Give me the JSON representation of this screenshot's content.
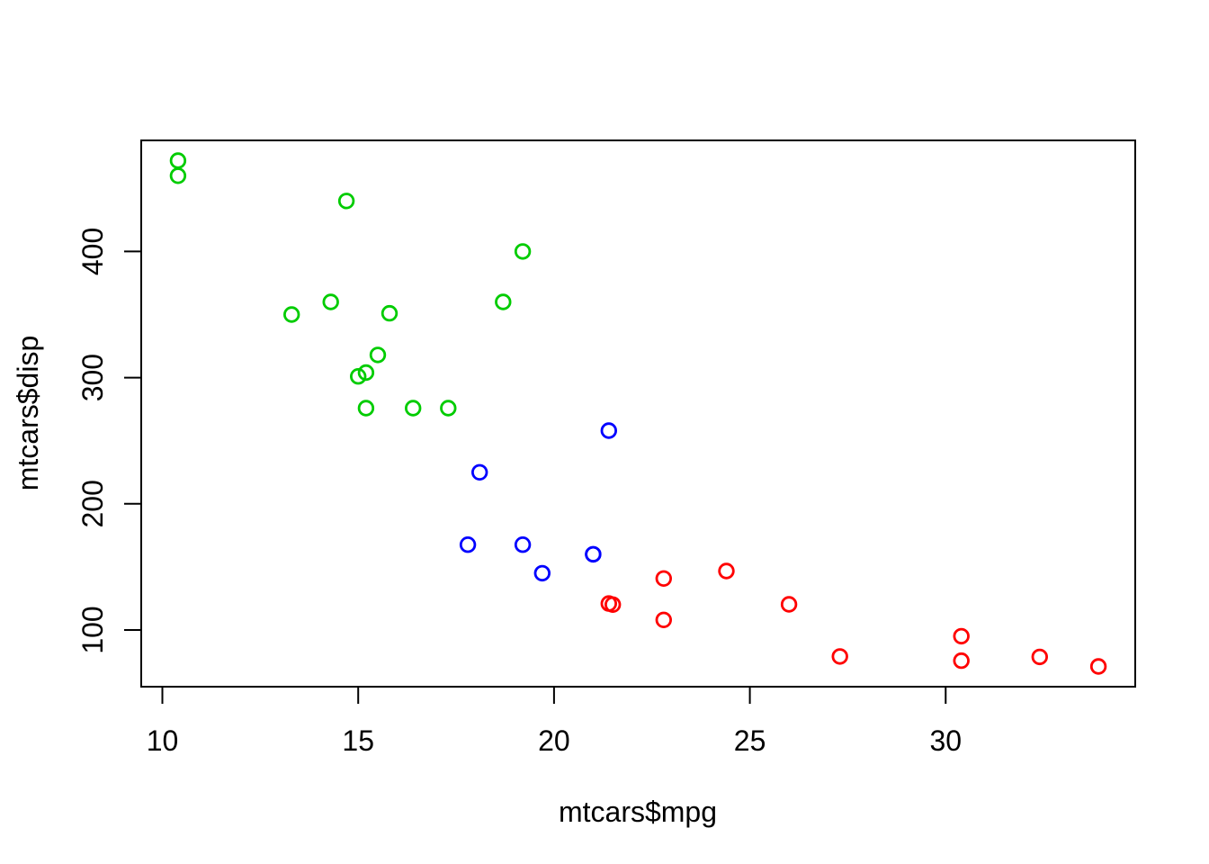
{
  "figure": {
    "background": "#ffffff",
    "axis_color": "#000000"
  },
  "chart_data": {
    "type": "scatter",
    "title": "",
    "xlabel": "mtcars$mpg",
    "ylabel": "mtcars$disp",
    "xlim": [
      9.46,
      34.84
    ],
    "ylim": [
      55.06,
      488.04
    ],
    "x_ticks": [
      10,
      15,
      20,
      25,
      30
    ],
    "y_ticks": [
      100,
      200,
      300,
      400
    ],
    "grid": false,
    "legend": "none",
    "marker": "open-circle",
    "series": [
      {
        "name": "red",
        "color": "#ff0000",
        "points": [
          [
            22.8,
            108.0
          ],
          [
            24.4,
            146.7
          ],
          [
            22.8,
            140.8
          ],
          [
            32.4,
            78.7
          ],
          [
            30.4,
            75.7
          ],
          [
            33.9,
            71.1
          ],
          [
            21.5,
            120.1
          ],
          [
            27.3,
            79.0
          ],
          [
            26.0,
            120.3
          ],
          [
            30.4,
            95.1
          ],
          [
            21.4,
            121.0
          ]
        ]
      },
      {
        "name": "blue",
        "color": "#0000ff",
        "points": [
          [
            21.0,
            160.0
          ],
          [
            21.0,
            160.0
          ],
          [
            21.4,
            258.0
          ],
          [
            18.1,
            225.0
          ],
          [
            19.2,
            167.6
          ],
          [
            17.8,
            167.6
          ],
          [
            19.7,
            145.0
          ]
        ]
      },
      {
        "name": "green",
        "color": "#00cc00",
        "points": [
          [
            18.7,
            360.0
          ],
          [
            14.3,
            360.0
          ],
          [
            16.4,
            275.8
          ],
          [
            17.3,
            275.8
          ],
          [
            15.2,
            275.8
          ],
          [
            10.4,
            472.0
          ],
          [
            10.4,
            460.0
          ],
          [
            14.7,
            440.0
          ],
          [
            15.5,
            318.0
          ],
          [
            15.2,
            304.0
          ],
          [
            13.3,
            350.0
          ],
          [
            19.2,
            400.0
          ],
          [
            15.8,
            351.0
          ],
          [
            15.0,
            301.0
          ]
        ]
      }
    ]
  }
}
